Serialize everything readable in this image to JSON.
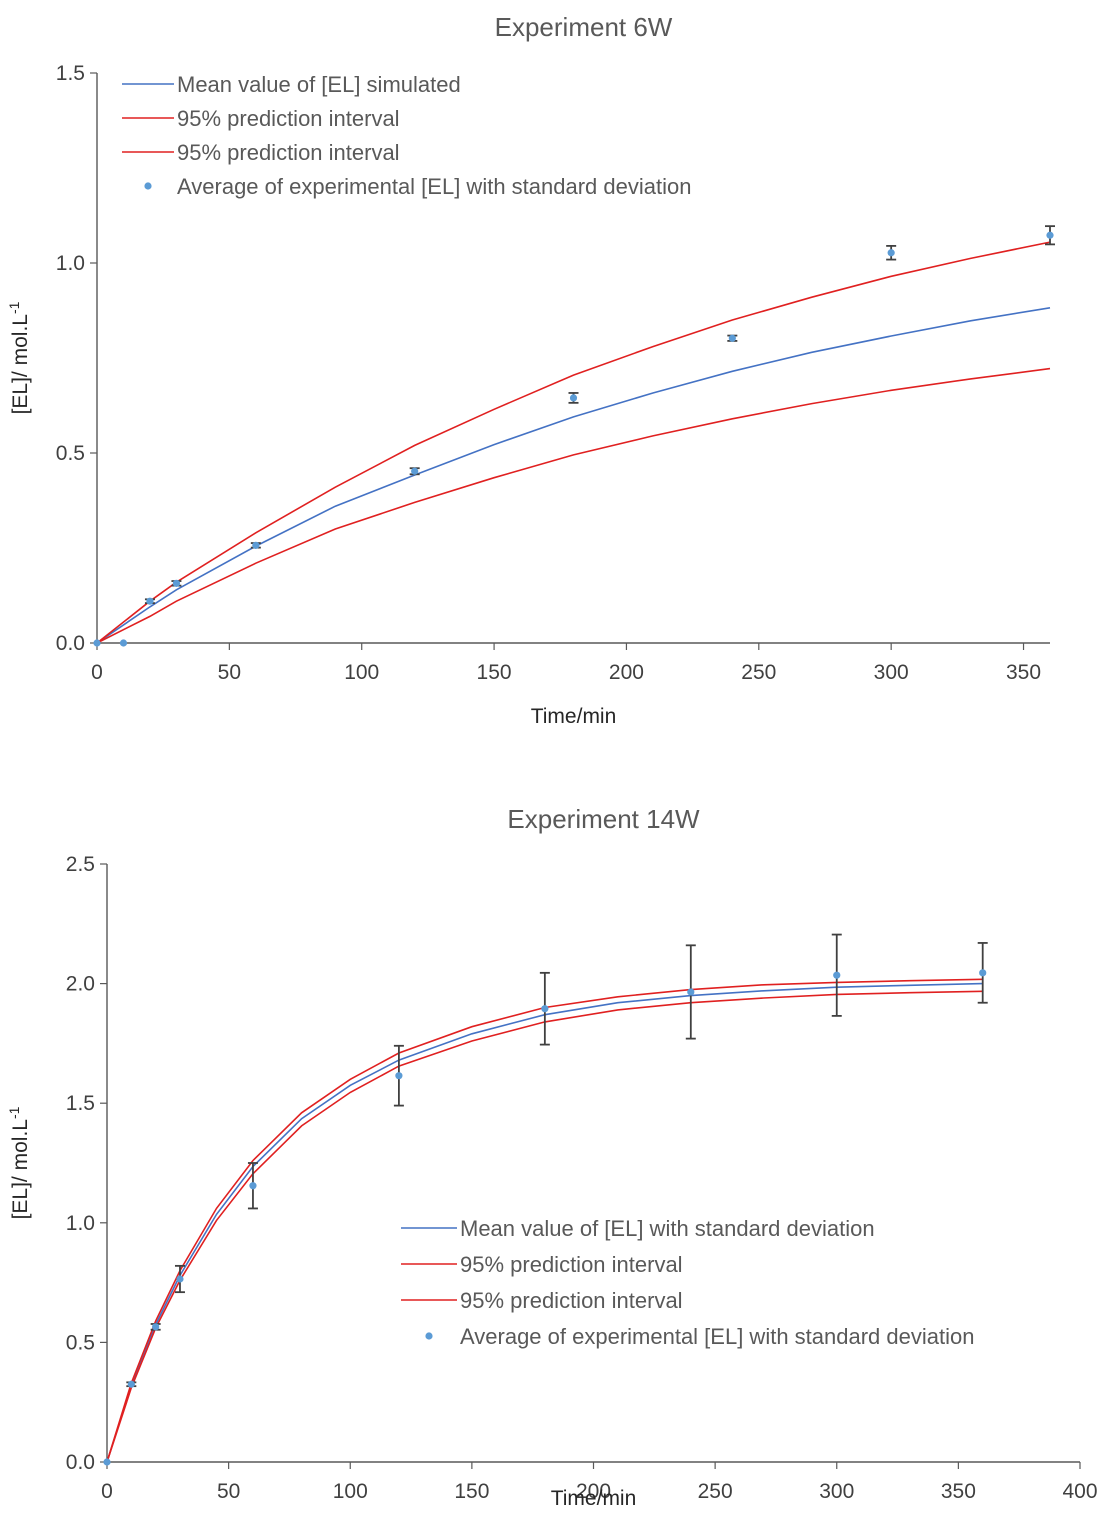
{
  "chart_data": [
    {
      "type": "line",
      "title": "Experiment 6W",
      "xlabel": "Time/min",
      "ylabel": "[EL]/ mol.L",
      "ylabel_sup": "-1",
      "xlim": [
        0,
        360
      ],
      "ylim": [
        0,
        1.5
      ],
      "xticks": [
        0,
        50,
        100,
        150,
        200,
        250,
        300,
        350
      ],
      "yticks": [
        "0.0",
        "0.5",
        "1.0",
        "1.5"
      ],
      "grid": false,
      "legend_position": "top-left",
      "series": [
        {
          "name": "Mean value of [EL] simulated",
          "kind": "line",
          "color": "#4472C4",
          "x": [
            0,
            20,
            30,
            60,
            90,
            120,
            150,
            180,
            210,
            240,
            270,
            300,
            330,
            360
          ],
          "y": [
            0,
            0.095,
            0.14,
            0.255,
            0.36,
            0.442,
            0.522,
            0.595,
            0.658,
            0.715,
            0.765,
            0.808,
            0.848,
            0.882
          ]
        },
        {
          "name": "95% prediction interval",
          "kind": "line",
          "color": "#E02020",
          "x": [
            0,
            20,
            30,
            60,
            90,
            120,
            150,
            180,
            210,
            240,
            270,
            300,
            330,
            360
          ],
          "y": [
            0,
            0.11,
            0.16,
            0.29,
            0.41,
            0.52,
            0.615,
            0.705,
            0.78,
            0.85,
            0.91,
            0.965,
            1.012,
            1.055
          ]
        },
        {
          "name": "95% prediction interval",
          "kind": "line",
          "color": "#E02020",
          "x": [
            0,
            20,
            30,
            60,
            90,
            120,
            150,
            180,
            210,
            240,
            270,
            300,
            330,
            360
          ],
          "y": [
            0,
            0.07,
            0.11,
            0.21,
            0.3,
            0.37,
            0.435,
            0.495,
            0.545,
            0.59,
            0.63,
            0.665,
            0.695,
            0.722
          ]
        },
        {
          "name": "Average of experimental [EL] with standard deviation",
          "kind": "scatter",
          "color": "#5B9BD5",
          "x": [
            0,
            10,
            20,
            30,
            60,
            120,
            180,
            240,
            300,
            360
          ],
          "y": [
            0,
            0,
            0.11,
            0.157,
            0.257,
            0.452,
            0.645,
            0.802,
            1.027,
            1.073
          ],
          "err": [
            0,
            0,
            0.005,
            0.006,
            0.006,
            0.008,
            0.013,
            0.007,
            0.018,
            0.024
          ]
        }
      ]
    },
    {
      "type": "line",
      "title": "Experiment 14W",
      "xlabel": "Time/min",
      "ylabel": "[EL]/ mol.L",
      "ylabel_sup": "-1",
      "xlim": [
        0,
        400
      ],
      "ylim": [
        0,
        2.5
      ],
      "xticks": [
        0,
        50,
        100,
        150,
        200,
        250,
        300,
        350,
        400
      ],
      "yticks": [
        "0.0",
        "0.5",
        "1.0",
        "1.5",
        "2.0",
        "2.5"
      ],
      "grid": false,
      "legend_position": "bottom-right",
      "series": [
        {
          "name": "Mean value of [EL] with standard deviation",
          "kind": "line",
          "color": "#4472C4",
          "x": [
            0,
            10,
            20,
            30,
            45,
            60,
            80,
            100,
            120,
            150,
            180,
            210,
            240,
            270,
            300,
            330,
            360
          ],
          "y": [
            0,
            0.32,
            0.575,
            0.78,
            1.035,
            1.235,
            1.435,
            1.575,
            1.68,
            1.79,
            1.87,
            1.92,
            1.95,
            1.97,
            1.985,
            1.993,
            2.0
          ]
        },
        {
          "name": "95% prediction interval",
          "kind": "line",
          "color": "#E02020",
          "x": [
            0,
            10,
            20,
            30,
            45,
            60,
            80,
            100,
            120,
            150,
            180,
            210,
            240,
            270,
            300,
            330,
            360
          ],
          "y": [
            0,
            0.33,
            0.59,
            0.8,
            1.06,
            1.26,
            1.46,
            1.6,
            1.71,
            1.82,
            1.9,
            1.945,
            1.975,
            1.995,
            2.005,
            2.012,
            2.018
          ]
        },
        {
          "name": "95% prediction interval",
          "kind": "line",
          "color": "#E02020",
          "x": [
            0,
            10,
            20,
            30,
            45,
            60,
            80,
            100,
            120,
            150,
            180,
            210,
            240,
            270,
            300,
            330,
            360
          ],
          "y": [
            0,
            0.31,
            0.56,
            0.76,
            1.01,
            1.205,
            1.405,
            1.545,
            1.655,
            1.76,
            1.84,
            1.89,
            1.92,
            1.94,
            1.955,
            1.962,
            1.968
          ]
        },
        {
          "name": "Average of experimental [EL] with standard deviation",
          "kind": "scatter",
          "color": "#5B9BD5",
          "x": [
            0,
            10,
            20,
            30,
            60,
            120,
            180,
            240,
            300,
            360
          ],
          "y": [
            0,
            0.325,
            0.565,
            0.765,
            1.155,
            1.615,
            1.895,
            1.965,
            2.035,
            2.045
          ],
          "err": [
            0,
            0.008,
            0.012,
            0.055,
            0.095,
            0.125,
            0.15,
            0.195,
            0.17,
            0.125
          ]
        }
      ]
    }
  ]
}
